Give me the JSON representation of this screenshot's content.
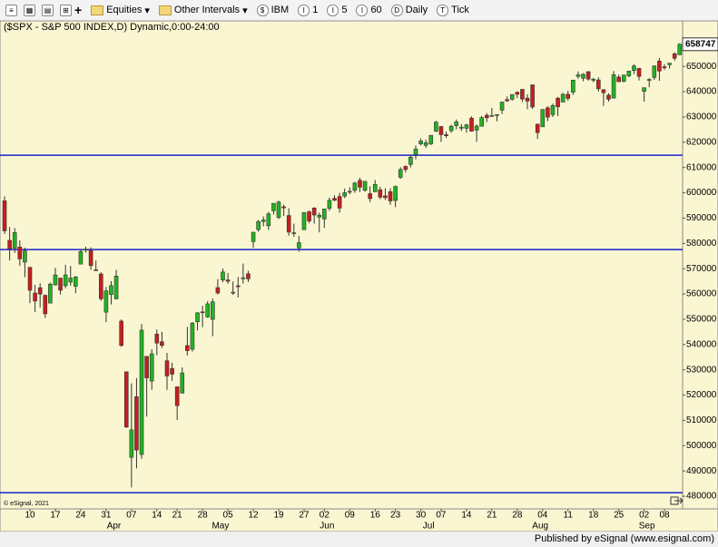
{
  "toolbar": {
    "items": [
      "Equities",
      "Other Intervals",
      "IBM",
      "1",
      "5",
      "60",
      "Daily",
      "Tick"
    ]
  },
  "watermark": "© eSignal, 2021",
  "footer": "Published by eSignal (www.esignal.com)",
  "chart_data": {
    "type": "candlestick",
    "title": "($SPX - S&P 500 INDEX,D) Dynamic,0:00-24:00",
    "up_color": "#22b322",
    "down_color": "#c81e1e",
    "categories": [
      null,
      null,
      null,
      null,
      null,
      "10",
      null,
      null,
      null,
      null,
      "17",
      null,
      null,
      null,
      null,
      "24",
      null,
      null,
      null,
      null,
      "31",
      null,
      null,
      null,
      null,
      "07",
      null,
      null,
      null,
      null,
      "14",
      null,
      null,
      null,
      "21",
      null,
      null,
      null,
      null,
      "28",
      null,
      null,
      null,
      null,
      "05",
      null,
      null,
      null,
      null,
      "12",
      null,
      null,
      null,
      null,
      "19",
      null,
      null,
      null,
      null,
      "27",
      null,
      null,
      null,
      "02",
      null,
      null,
      null,
      null,
      "09",
      null,
      null,
      null,
      null,
      "16",
      null,
      null,
      null,
      "23",
      null,
      null,
      null,
      null,
      "30",
      null,
      null,
      null,
      "07",
      null,
      null,
      null,
      null,
      "14",
      null,
      null,
      null,
      null,
      "21",
      null,
      null,
      null,
      null,
      "28",
      null,
      null,
      null,
      null,
      "04",
      null,
      null,
      null,
      null,
      "11",
      null,
      null,
      null,
      null,
      "18",
      null,
      null,
      null,
      null,
      "25",
      null,
      null,
      null,
      null,
      "02",
      null,
      null,
      null,
      "08",
      null,
      null,
      null
    ],
    "months": [
      null,
      null,
      null,
      null,
      null,
      null,
      null,
      null,
      null,
      null,
      null,
      null,
      null,
      null,
      null,
      null,
      null,
      null,
      null,
      null,
      null,
      "Apr",
      null,
      null,
      null,
      null,
      null,
      null,
      null,
      null,
      null,
      null,
      null,
      null,
      null,
      null,
      null,
      null,
      null,
      null,
      null,
      null,
      "May",
      null,
      null,
      null,
      null,
      null,
      null,
      null,
      null,
      null,
      null,
      null,
      null,
      null,
      null,
      null,
      null,
      null,
      null,
      null,
      null,
      "Jun",
      null,
      null,
      null,
      null,
      null,
      null,
      null,
      null,
      null,
      null,
      null,
      null,
      null,
      null,
      null,
      null,
      null,
      null,
      null,
      "Jul",
      null,
      null,
      null,
      null,
      null,
      null,
      null,
      null,
      null,
      null,
      null,
      null,
      null,
      null,
      null,
      null,
      null,
      null,
      null,
      null,
      null,
      "Aug",
      null,
      null,
      null,
      null,
      null,
      null,
      null,
      null,
      null,
      null,
      null,
      null,
      null,
      null,
      null,
      null,
      null,
      null,
      null,
      null,
      "Sep",
      null,
      null,
      null,
      null,
      null,
      null,
      null
    ],
    "open": [
      5968.3,
      5811.98,
      5781.4,
      5785.9,
      5726,
      5705.4,
      5603.7,
      5624.8,
      5594.5,
      5563.9,
      5635.6,
      5662.9,
      5632.4,
      5646.9,
      5630.7,
      5718.1,
      5775.1,
      5771.7,
      5695.6,
      5679,
      5527.9,
      5597.5,
      5580.8,
      5492.7,
      5292.1,
      4953.8,
      5193.6,
      4965.3,
      5353.2,
      5255.6,
      5441,
      5411,
      5335.8,
      5305.5,
      5232.9,
      5207.7,
      5395.9,
      5381.4,
      5489.7,
      5529.2,
      5508.9,
      5499.4,
      5625.1,
      5655.3,
      5655.3,
      5605.9,
      5632.3,
      5663.4,
      5679.7,
      5807.1,
      5854.2,
      5886.6,
      5869.6,
      5929.1,
      5902.9,
      5944.7,
      5910.3,
      5841.3,
      5781.9,
      5854.1,
      5925.1,
      5939.9,
      5903.7,
      5896.7,
      5938.6,
      5978.1,
      5985.7,
      5987.1,
      6004.6,
      6009.9,
      6049.4,
      6009.9,
      5996.7,
      6004,
      6012.2,
      5987.9,
      6004.6,
      5969.7,
      6061.2,
      6104.4,
      6112.1,
      6150.7,
      6193.4,
      6187.7,
      6193.7,
      6243.9,
      6262.3,
      6230,
      6245.8,
      6265.4,
      6255.7,
      6255.2,
      6295.3,
      6247.9,
      6263,
      6306.8,
      6304.7,
      6306.6,
      6326.9,
      6368.6,
      6370,
      6397.7,
      6409.3,
      6374.3,
      6427,
      6271.7,
      6260.9,
      6336,
      6309.3,
      6374.2,
      6359,
      6389.7,
      6398,
      6460.3,
      6453.4,
      6478.9,
      6445,
      6446.5,
      6407.9,
      6386.3,
      6374.8,
      6457.7,
      6440.9,
      6462.6,
      6483.6,
      6491.8,
      6401.5,
      6447.6,
      6456.3,
      6521.1,
      6498.1,
      6506.6,
      6550,
      6546
    ],
    "high": [
      5986.1,
      5865.1,
      5860.6,
      5812.1,
      5783,
      5705.4,
      5636.3,
      5642.2,
      5597.8,
      5645.3,
      5703.5,
      5662.9,
      5715.3,
      5711.2,
      5670.8,
      5775.1,
      5786.9,
      5784.1,
      5732.3,
      5685.9,
      5627.6,
      5650.6,
      5695.3,
      5499.5,
      5292.1,
      5246.6,
      5267.5,
      5481.3,
      5353.2,
      5381.5,
      5459.5,
      5450.4,
      5367.2,
      5328.3,
      5232.9,
      5309.6,
      5469.7,
      5489.4,
      5528.1,
      5553.7,
      5571.9,
      5581.8,
      5658.9,
      5700.7,
      5683.2,
      5649.6,
      5667.5,
      5720.1,
      5691.7,
      5845.9,
      5892.6,
      5906.6,
      5924.2,
      5958.6,
      5968.6,
      5953.1,
      5939.3,
      5878.1,
      5829.5,
      5924.1,
      5930,
      5943.1,
      5922.1,
      5937.4,
      5981.4,
      5990.5,
      5999.7,
      6016.9,
      6021.7,
      6043,
      6059.4,
      6045.4,
      6026.2,
      6050.8,
      6023.2,
      6018.2,
      6018.2,
      6028.2,
      6101.2,
      6108.5,
      6146.5,
      6187.7,
      6215.1,
      6210.8,
      6227.6,
      6284.7,
      6262.3,
      6242.8,
      6269.3,
      6290.2,
      6272.3,
      6272.9,
      6302.3,
      6270.6,
      6304.3,
      6315.6,
      6336.1,
      6310.7,
      6360.6,
      6381.3,
      6389.7,
      6401.1,
      6409.3,
      6389.7,
      6427,
      6271.7,
      6330,
      6342.6,
      6352.8,
      6379.4,
      6395.2,
      6403.2,
      6446.6,
      6480.3,
      6473.1,
      6481.3,
      6455,
      6456.6,
      6408,
      6393.6,
      6481.3,
      6466.9,
      6466.6,
      6482.2,
      6508.2,
      6494.2,
      6416.5,
      6453.7,
      6502.5,
      6532.7,
      6508.4,
      6512.6,
      6555,
      6592
    ],
    "low": [
      5837.1,
      5732.6,
      5762.3,
      5711.6,
      5666.3,
      5564,
      5528.4,
      5546.1,
      5504.7,
      5563.9,
      5633.4,
      5597.8,
      5622.2,
      5632.2,
      5603.1,
      5718.1,
      5764.1,
      5695.4,
      5694.4,
      5572.4,
      5488.7,
      5558.5,
      5578.6,
      5390.8,
      5069.9,
      4835,
      4910.4,
      4948.4,
      5115.3,
      5220.8,
      5358,
      5386.4,
      5220.8,
      5255.6,
      5101.6,
      5207.7,
      5356.4,
      5371.9,
      5455.9,
      5468.6,
      5505.7,
      5433.2,
      5597.4,
      5646.3,
      5640.3,
      5596.3,
      5586.3,
      5640.7,
      5647.1,
      5781.4,
      5846.2,
      5867.6,
      5853.1,
      5914.1,
      5895.7,
      5908.1,
      5830.3,
      5825.8,
      5767.4,
      5854.1,
      5880.1,
      5878.3,
      5843.7,
      5861.4,
      5929,
      5966.1,
      5921.2,
      5978.6,
      5994.2,
      6000.3,
      6002.3,
      6003.9,
      5963.2,
      6004,
      5974.8,
      5971.9,
      5952.6,
      5943.2,
      6055.4,
      6080.2,
      6100.4,
      6132.3,
      6186.9,
      6177.9,
      6188.2,
      6240.2,
      6201,
      6217.1,
      6237.4,
      6250.9,
      6244.7,
      6237.4,
      6241.8,
      6201.8,
      6263,
      6279.7,
      6303.1,
      6282.7,
      6311.2,
      6360.6,
      6364.5,
      6375.2,
      6359.2,
      6330.8,
      6331.7,
      6212.7,
      6260.8,
      6283.2,
      6299.9,
      6303.8,
      6358.8,
      6364.1,
      6386.9,
      6451.3,
      6441.1,
      6443.6,
      6437,
      6400.2,
      6343.8,
      6360.6,
      6374.3,
      6438.1,
      6436.8,
      6457.1,
      6469.2,
      6444,
      6360.6,
      6417.3,
      6446.6,
      6443,
      6485.6,
      6491.9,
      6522,
      6545
    ],
    "close": [
      5849.7,
      5778.2,
      5842.6,
      5738.5,
      5770.2,
      5614.6,
      5572.1,
      5599.3,
      5521.5,
      5638.9,
      5675.1,
      5614.7,
      5675.3,
      5662.9,
      5667.6,
      5767.6,
      5776.6,
      5712.2,
      5693.3,
      5580.9,
      5611.9,
      5633.1,
      5670.9,
      5396.5,
      5074.1,
      5062.3,
      4982.8,
      5456.9,
      5268.1,
      5363.4,
      5405.9,
      5396.6,
      5275.7,
      5282.7,
      5158.2,
      5287.8,
      5375.9,
      5484.8,
      5525.2,
      5528.8,
      5560.8,
      5569.1,
      5604.1,
      5686.7,
      5650.4,
      5607,
      5631.3,
      5663.9,
      5659.9,
      5844.2,
      5886.6,
      5892.6,
      5916.9,
      5958.4,
      5963.6,
      5940.5,
      5844.6,
      5842,
      5802.8,
      5921.5,
      5888.6,
      5912.2,
      5911.7,
      5935.9,
      5970.4,
      5970.8,
      5939.3,
      6000.4,
      6005.9,
      6038.8,
      6022.2,
      6045.3,
      5977,
      6033.1,
      5982.7,
      5980.9,
      5967.8,
      6025.2,
      6092.2,
      6092.2,
      6141,
      6173.1,
      6205,
      6198,
      6227.4,
      6279.4,
      6229.98,
      6225.5,
      6263.3,
      6280.5,
      6259.8,
      6268.6,
      6243.8,
      6263.7,
      6297.4,
      6296.8,
      6305.6,
      6309.6,
      6358.9,
      6363.4,
      6388.6,
      6389.8,
      6370.9,
      6362.9,
      6339.4,
      6238,
      6329.9,
      6299.2,
      6345.1,
      6340,
      6389.5,
      6373.5,
      6445.8,
      6466.6,
      6468.5,
      6449.8,
      6449.2,
      6411.4,
      6395.8,
      6370.2,
      6466.9,
      6439.3,
      6465.9,
      6481.4,
      6501.9,
      6460.3,
      6415.5,
      6448.3,
      6502.1,
      6481.5,
      6495.2,
      6512.6,
      6532,
      6587.47
    ],
    "hlines": [
      6148.5,
      5775.5,
      4814
    ],
    "hline_color": "#1a23c8",
    "ylim": [
      4750,
      6680
    ],
    "yticks": [
      {
        "value": 4800,
        "label": "480000"
      },
      {
        "value": 4900,
        "label": "490000"
      },
      {
        "value": 5000,
        "label": "500000"
      },
      {
        "value": 5100,
        "label": "510000"
      },
      {
        "value": 5200,
        "label": "520000"
      },
      {
        "value": 5300,
        "label": "530000"
      },
      {
        "value": 5400,
        "label": "540000"
      },
      {
        "value": 5500,
        "label": "550000"
      },
      {
        "value": 5600,
        "label": "560000"
      },
      {
        "value": 5700,
        "label": "570000"
      },
      {
        "value": 5800,
        "label": "580000"
      },
      {
        "value": 5900,
        "label": "590000"
      },
      {
        "value": 6000,
        "label": "600000"
      },
      {
        "value": 6100,
        "label": "610000"
      },
      {
        "value": 6200,
        "label": "620000"
      },
      {
        "value": 6300,
        "label": "630000"
      },
      {
        "value": 6400,
        "label": "640000"
      },
      {
        "value": 6500,
        "label": "650000"
      }
    ],
    "last": {
      "value": 6587.47,
      "label": "658747"
    }
  }
}
